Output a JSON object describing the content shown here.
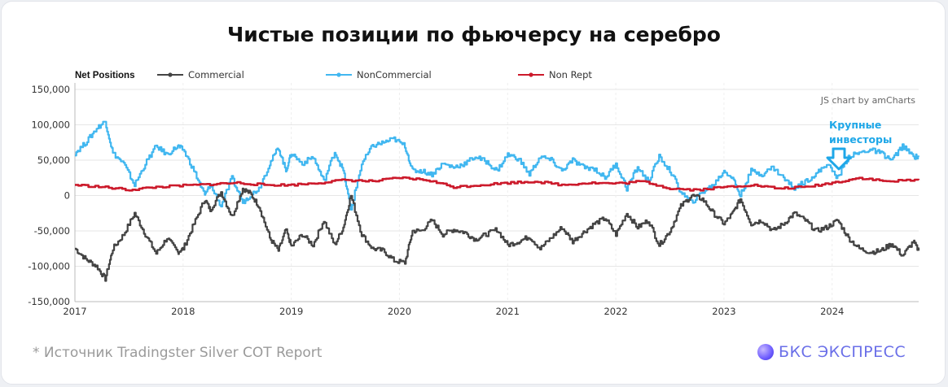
{
  "title": "Чистые позиции по фьючерсу на серебро",
  "source_note": "*  Источник Tradingster Silver COT Report",
  "brand": {
    "label": "БКС ЭКСПРЕСС",
    "icon": "bks-logo-icon"
  },
  "credit": "JS chart by amCharts",
  "annotation": {
    "line1": "Крупные",
    "line2": "инвесторы",
    "icon": "arrow-down-icon",
    "color": "#1ea7e8"
  },
  "colors": {
    "commercial": "#444444",
    "noncommercial": "#41b7f0",
    "nonrept": "#cc1a2b"
  },
  "chart_data": {
    "type": "line",
    "legend_title": "Net Positions",
    "legend_position": "top",
    "ylim": [
      -150000,
      150000
    ],
    "y_ticks": [
      150000,
      100000,
      50000,
      0,
      -50000,
      -100000,
      -150000
    ],
    "y_tick_labels": [
      "150,000",
      "100,000",
      "50,000",
      "0",
      "-50,000",
      "-100,000",
      "-150,000"
    ],
    "xlim": [
      2017.0,
      2024.8
    ],
    "x_ticks": [
      2017,
      2018,
      2019,
      2020,
      2021,
      2022,
      2023,
      2024
    ],
    "x_tick_labels": [
      "2017",
      "2018",
      "2019",
      "2020",
      "2021",
      "2022",
      "2023",
      "2024"
    ],
    "grid": true,
    "series": [
      {
        "name": "Commercial",
        "color": "#444444",
        "x": [
          2017.0,
          2017.1,
          2017.2,
          2017.28,
          2017.35,
          2017.45,
          2017.55,
          2017.65,
          2017.75,
          2017.85,
          2017.95,
          2018.0,
          2018.1,
          2018.2,
          2018.25,
          2018.35,
          2018.45,
          2018.55,
          2018.62,
          2018.7,
          2018.8,
          2018.88,
          2018.95,
          2019.0,
          2019.1,
          2019.2,
          2019.3,
          2019.4,
          2019.48,
          2019.55,
          2019.65,
          2019.75,
          2019.85,
          2019.95,
          2020.05,
          2020.12,
          2020.2,
          2020.3,
          2020.4,
          2020.5,
          2020.6,
          2020.7,
          2020.8,
          2020.9,
          2021.0,
          2021.1,
          2021.2,
          2021.3,
          2021.4,
          2021.5,
          2021.6,
          2021.7,
          2021.8,
          2021.9,
          2022.0,
          2022.1,
          2022.2,
          2022.3,
          2022.4,
          2022.5,
          2022.6,
          2022.7,
          2022.8,
          2022.9,
          2023.0,
          2023.08,
          2023.15,
          2023.25,
          2023.35,
          2023.45,
          2023.55,
          2023.65,
          2023.75,
          2023.85,
          2023.95,
          2024.05,
          2024.15,
          2024.25,
          2024.35,
          2024.45,
          2024.55,
          2024.65,
          2024.75,
          2024.8
        ],
        "values": [
          -75000,
          -90000,
          -100000,
          -118000,
          -75000,
          -55000,
          -25000,
          -55000,
          -82000,
          -60000,
          -80000,
          -75000,
          -40000,
          -5000,
          -20000,
          5000,
          -30000,
          10000,
          3000,
          -15000,
          -60000,
          -78000,
          -48000,
          -72000,
          -55000,
          -70000,
          -35000,
          -70000,
          -45000,
          0,
          -55000,
          -75000,
          -78000,
          -92000,
          -95000,
          -50000,
          -50000,
          -35000,
          -55000,
          -48000,
          -52000,
          -62000,
          -55000,
          -48000,
          -70000,
          -65000,
          -58000,
          -75000,
          -60000,
          -45000,
          -65000,
          -52000,
          -40000,
          -32000,
          -55000,
          -25000,
          -45000,
          -35000,
          -70000,
          -50000,
          -15000,
          0,
          -5000,
          -25000,
          -40000,
          -25000,
          -5000,
          -40000,
          -35000,
          -50000,
          -40000,
          -25000,
          -35000,
          -50000,
          -45000,
          -35000,
          -60000,
          -75000,
          -80000,
          -78000,
          -68000,
          -85000,
          -65000,
          -78000
        ]
      },
      {
        "name": "NonCommercial",
        "color": "#41b7f0",
        "x": [
          2017.0,
          2017.1,
          2017.2,
          2017.28,
          2017.35,
          2017.45,
          2017.55,
          2017.65,
          2017.75,
          2017.85,
          2017.95,
          2018.0,
          2018.1,
          2018.2,
          2018.25,
          2018.35,
          2018.45,
          2018.55,
          2018.62,
          2018.7,
          2018.8,
          2018.88,
          2018.95,
          2019.0,
          2019.1,
          2019.2,
          2019.3,
          2019.4,
          2019.48,
          2019.55,
          2019.65,
          2019.75,
          2019.85,
          2019.95,
          2020.05,
          2020.12,
          2020.2,
          2020.3,
          2020.4,
          2020.5,
          2020.6,
          2020.7,
          2020.8,
          2020.9,
          2021.0,
          2021.1,
          2021.2,
          2021.3,
          2021.4,
          2021.5,
          2021.6,
          2021.7,
          2021.8,
          2021.9,
          2022.0,
          2022.1,
          2022.2,
          2022.3,
          2022.4,
          2022.5,
          2022.6,
          2022.7,
          2022.8,
          2022.9,
          2023.0,
          2023.08,
          2023.15,
          2023.25,
          2023.35,
          2023.45,
          2023.55,
          2023.65,
          2023.75,
          2023.85,
          2023.95,
          2024.05,
          2024.15,
          2024.25,
          2024.35,
          2024.45,
          2024.55,
          2024.65,
          2024.75,
          2024.8
        ],
        "values": [
          60000,
          75000,
          95000,
          105000,
          60000,
          45000,
          15000,
          45000,
          70000,
          58000,
          70000,
          65000,
          35000,
          0,
          15000,
          -15000,
          25000,
          -10000,
          0,
          10000,
          45000,
          68000,
          35000,
          60000,
          45000,
          55000,
          20000,
          62000,
          35000,
          -20000,
          45000,
          70000,
          75000,
          80000,
          70000,
          35000,
          35000,
          30000,
          45000,
          40000,
          45000,
          55000,
          48000,
          35000,
          58000,
          52000,
          30000,
          55000,
          50000,
          35000,
          50000,
          40000,
          38000,
          25000,
          45000,
          10000,
          40000,
          20000,
          55000,
          35000,
          5000,
          -10000,
          5000,
          15000,
          35000,
          25000,
          0,
          35000,
          30000,
          40000,
          25000,
          10000,
          20000,
          30000,
          45000,
          25000,
          55000,
          60000,
          65000,
          60000,
          50000,
          70000,
          55000,
          55000
        ]
      },
      {
        "name": "Non Rept",
        "color": "#cc1a2b",
        "x": [
          2017.0,
          2017.25,
          2017.5,
          2017.75,
          2018.0,
          2018.25,
          2018.5,
          2018.75,
          2019.0,
          2019.25,
          2019.5,
          2019.75,
          2020.0,
          2020.25,
          2020.5,
          2020.75,
          2021.0,
          2021.25,
          2021.5,
          2021.75,
          2022.0,
          2022.25,
          2022.5,
          2022.75,
          2023.0,
          2023.25,
          2023.5,
          2023.75,
          2024.0,
          2024.25,
          2024.5,
          2024.8
        ],
        "values": [
          15000,
          12000,
          8000,
          12000,
          14000,
          16000,
          18000,
          15000,
          15000,
          18000,
          22000,
          20000,
          25000,
          22000,
          12000,
          15000,
          18000,
          20000,
          15000,
          18000,
          17000,
          20000,
          10000,
          8000,
          12000,
          15000,
          10000,
          12000,
          18000,
          25000,
          20000,
          22000
        ]
      }
    ]
  }
}
